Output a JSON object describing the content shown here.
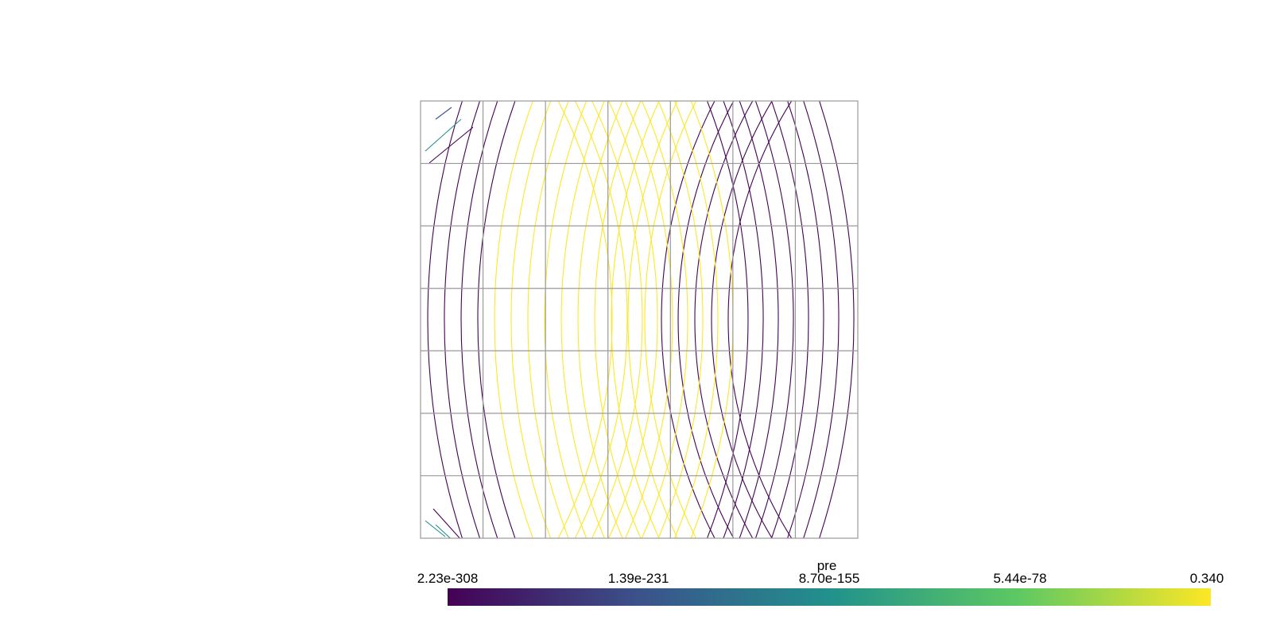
{
  "colorbar": {
    "title": "pre",
    "labels": [
      "2.23e-308",
      "1.39e-231",
      "8.70e-155",
      "5.44e-78",
      "0.340"
    ],
    "colormap": "viridis",
    "colors": [
      "#440154",
      "#3b528b",
      "#21918c",
      "#5ec962",
      "#fde725"
    ]
  },
  "mesh": {
    "rows": 7,
    "cols": 7,
    "line_color": "#999999"
  },
  "field": {
    "low_color": "#440154",
    "high_color": "#fde725"
  }
}
